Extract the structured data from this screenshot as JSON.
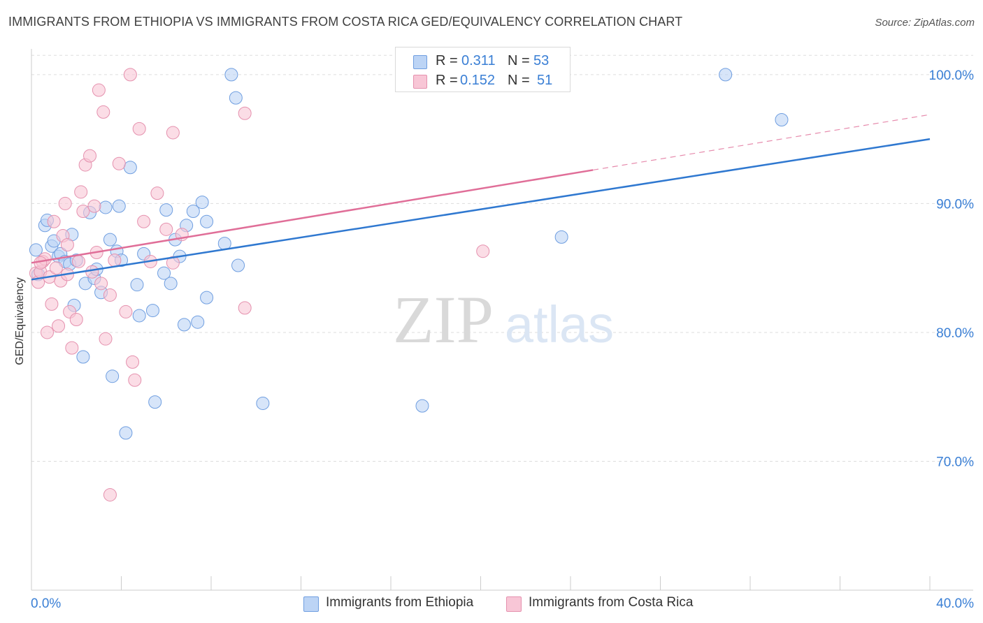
{
  "title": "IMMIGRANTS FROM ETHIOPIA VS IMMIGRANTS FROM COSTA RICA GED/EQUIVALENCY CORRELATION CHART",
  "source": "Source: ZipAtlas.com",
  "watermark": {
    "zip": "ZIP",
    "atlas": "atlas"
  },
  "colors": {
    "ethiopia_fill": "#bcd4f5",
    "ethiopia_stroke": "#6f9ee0",
    "ethiopia_line": "#2f78d0",
    "costarica_fill": "#f8c6d6",
    "costarica_stroke": "#e591ae",
    "costarica_line": "#e06e98",
    "tick_label": "#3a7fd5",
    "grid": "#dddddd"
  },
  "legend_top": {
    "rows": [
      {
        "r_label": "R =",
        "r_value": "0.311",
        "n_label": "N =",
        "n_value": "53"
      },
      {
        "r_label": "R =",
        "r_value": "0.152",
        "n_label": "N =",
        "n_value": "51"
      }
    ]
  },
  "legend_bottom": [
    "Immigrants from Ethiopia",
    "Immigrants from Costa Rica"
  ],
  "chart_data": {
    "type": "scatter",
    "xlabel": "",
    "ylabel": "GED/Equivalency",
    "xlim": [
      0,
      40
    ],
    "ylim": [
      60,
      102
    ],
    "x_tick_labels": [
      "0.0%",
      "40.0%"
    ],
    "y_ticks": [
      70,
      80,
      90,
      100
    ],
    "y_tick_labels": [
      "70.0%",
      "80.0%",
      "90.0%",
      "100.0%"
    ],
    "grid": true,
    "legend_position": "top-center",
    "series": [
      {
        "name": "Immigrants from Ethiopia",
        "points": [
          [
            0.2,
            86.4
          ],
          [
            0.6,
            88.3
          ],
          [
            0.7,
            88.7
          ],
          [
            0.9,
            86.7
          ],
          [
            1.0,
            87.1
          ],
          [
            1.2,
            85.9
          ],
          [
            1.3,
            86.1
          ],
          [
            1.5,
            85.5
          ],
          [
            1.7,
            85.3
          ],
          [
            1.8,
            87.6
          ],
          [
            1.9,
            82.1
          ],
          [
            2.0,
            85.6
          ],
          [
            2.3,
            78.1
          ],
          [
            2.4,
            83.8
          ],
          [
            2.6,
            89.3
          ],
          [
            2.8,
            84.2
          ],
          [
            2.9,
            84.9
          ],
          [
            3.1,
            83.1
          ],
          [
            3.3,
            89.7
          ],
          [
            3.5,
            87.2
          ],
          [
            3.6,
            76.6
          ],
          [
            3.8,
            86.3
          ],
          [
            3.9,
            89.8
          ],
          [
            4.0,
            85.6
          ],
          [
            4.2,
            72.2
          ],
          [
            4.4,
            92.8
          ],
          [
            4.7,
            83.7
          ],
          [
            4.8,
            81.3
          ],
          [
            5.0,
            86.1
          ],
          [
            5.4,
            81.7
          ],
          [
            5.5,
            74.6
          ],
          [
            5.9,
            84.6
          ],
          [
            6.0,
            89.5
          ],
          [
            6.2,
            83.8
          ],
          [
            6.4,
            87.2
          ],
          [
            6.6,
            85.9
          ],
          [
            6.8,
            80.6
          ],
          [
            6.9,
            88.3
          ],
          [
            7.2,
            89.4
          ],
          [
            7.4,
            80.8
          ],
          [
            7.6,
            90.1
          ],
          [
            7.8,
            88.6
          ],
          [
            7.8,
            82.7
          ],
          [
            8.6,
            86.9
          ],
          [
            8.9,
            100.0
          ],
          [
            9.1,
            98.2
          ],
          [
            9.2,
            85.2
          ],
          [
            10.3,
            74.5
          ],
          [
            17.4,
            74.3
          ],
          [
            23.6,
            87.4
          ],
          [
            30.9,
            100.0
          ],
          [
            33.4,
            96.5
          ],
          [
            0.3,
            84.5
          ]
        ]
      },
      {
        "name": "Immigrants from Costa Rica",
        "points": [
          [
            0.2,
            84.6
          ],
          [
            0.3,
            83.9
          ],
          [
            0.4,
            84.7
          ],
          [
            0.5,
            85.5
          ],
          [
            0.6,
            85.7
          ],
          [
            0.7,
            80.0
          ],
          [
            0.8,
            84.3
          ],
          [
            0.9,
            82.2
          ],
          [
            1.0,
            88.6
          ],
          [
            1.1,
            85.0
          ],
          [
            1.2,
            80.5
          ],
          [
            1.3,
            84.0
          ],
          [
            1.4,
            87.5
          ],
          [
            1.5,
            90.0
          ],
          [
            1.6,
            86.8
          ],
          [
            1.7,
            81.6
          ],
          [
            1.8,
            78.8
          ],
          [
            2.0,
            81.0
          ],
          [
            2.1,
            85.5
          ],
          [
            2.2,
            90.9
          ],
          [
            2.3,
            89.4
          ],
          [
            2.4,
            93.0
          ],
          [
            2.6,
            93.7
          ],
          [
            2.7,
            84.7
          ],
          [
            2.8,
            89.8
          ],
          [
            2.9,
            86.2
          ],
          [
            3.0,
            98.8
          ],
          [
            3.1,
            83.8
          ],
          [
            3.2,
            97.1
          ],
          [
            3.3,
            79.5
          ],
          [
            3.5,
            82.9
          ],
          [
            3.5,
            67.4
          ],
          [
            3.7,
            85.6
          ],
          [
            3.9,
            93.1
          ],
          [
            4.2,
            81.6
          ],
          [
            4.4,
            100.0
          ],
          [
            4.5,
            77.7
          ],
          [
            4.6,
            76.3
          ],
          [
            4.8,
            95.8
          ],
          [
            5.0,
            88.6
          ],
          [
            5.3,
            85.5
          ],
          [
            5.6,
            90.8
          ],
          [
            6.0,
            88.0
          ],
          [
            6.3,
            95.5
          ],
          [
            6.3,
            85.4
          ],
          [
            6.7,
            87.6
          ],
          [
            9.5,
            97.0
          ],
          [
            9.5,
            81.9
          ],
          [
            20.1,
            86.3
          ],
          [
            0.4,
            85.4
          ],
          [
            1.6,
            84.5
          ]
        ]
      }
    ],
    "trend_lines": [
      {
        "series": "Immigrants from Ethiopia",
        "x": [
          0,
          40
        ],
        "y": [
          84.1,
          95.0
        ]
      },
      {
        "series": "Immigrants from Costa Rica",
        "x": [
          0,
          25
        ],
        "y": [
          85.4,
          92.6
        ],
        "dashed_extension_to": [
          40,
          96.9
        ]
      }
    ]
  }
}
